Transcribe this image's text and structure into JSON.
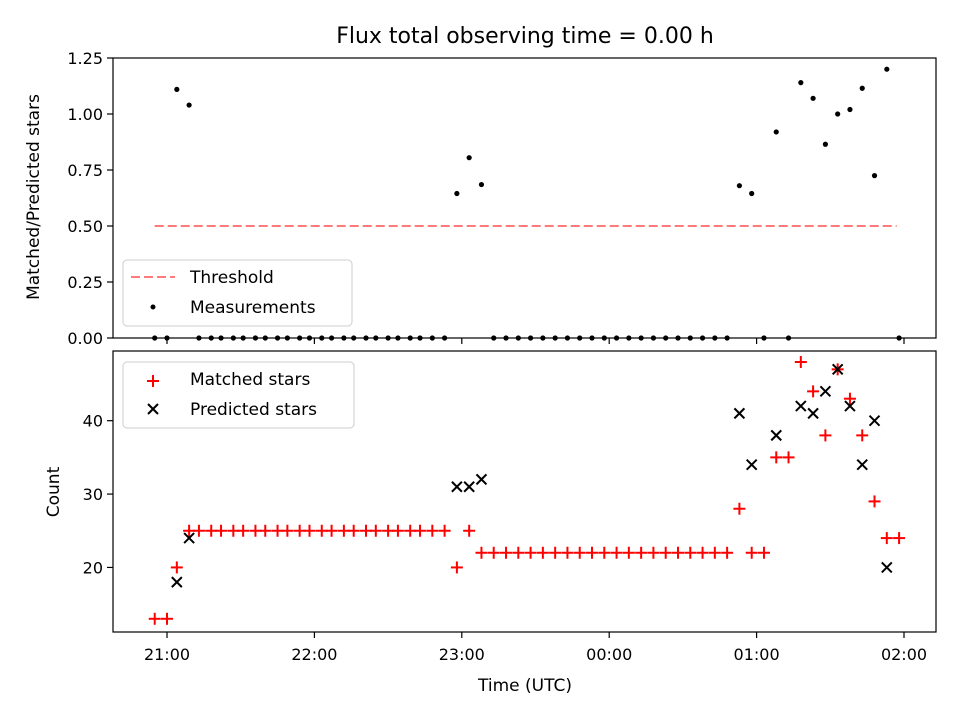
{
  "chart_data": [
    {
      "type": "scatter",
      "title": "Flux total observing time = 0.00 h",
      "xlabel": "",
      "ylabel": "Matched/Predicted stars",
      "x_tick_labels_visible": false,
      "ylim": [
        0,
        1.25
      ],
      "yticks": [
        "0.00",
        "0.25",
        "0.50",
        "0.75",
        "1.00",
        "1.25"
      ],
      "legend_position": "lower-left",
      "threshold": {
        "name": "Threshold",
        "value": 0.5,
        "x_start": "20:55",
        "x_end": "01:57",
        "color": "#ff7b7b",
        "style": "dashed"
      },
      "series": [
        {
          "name": "Measurements",
          "marker": "dot",
          "color": "#000000",
          "points": [
            [
              "20:55",
              0
            ],
            [
              "21:00",
              0
            ],
            [
              "21:04",
              1.11
            ],
            [
              "21:09",
              1.04
            ],
            [
              "21:13",
              0
            ],
            [
              "21:18",
              0
            ],
            [
              "21:22",
              0
            ],
            [
              "21:27",
              0
            ],
            [
              "21:31",
              0
            ],
            [
              "21:36",
              0
            ],
            [
              "21:40",
              0
            ],
            [
              "21:45",
              0
            ],
            [
              "21:49",
              0
            ],
            [
              "21:54",
              0
            ],
            [
              "21:58",
              0
            ],
            [
              "22:03",
              0
            ],
            [
              "22:07",
              0
            ],
            [
              "22:12",
              0
            ],
            [
              "22:16",
              0
            ],
            [
              "22:21",
              0
            ],
            [
              "22:25",
              0
            ],
            [
              "22:30",
              0
            ],
            [
              "22:34",
              0
            ],
            [
              "22:39",
              0
            ],
            [
              "22:43",
              0
            ],
            [
              "22:48",
              0
            ],
            [
              "22:53",
              0
            ],
            [
              "22:58",
              0.645
            ],
            [
              "23:03",
              0.805
            ],
            [
              "23:08",
              0.685
            ],
            [
              "23:13",
              0
            ],
            [
              "23:18",
              0
            ],
            [
              "23:23",
              0
            ],
            [
              "23:28",
              0
            ],
            [
              "23:33",
              0
            ],
            [
              "23:38",
              0
            ],
            [
              "23:43",
              0
            ],
            [
              "23:48",
              0
            ],
            [
              "23:53",
              0
            ],
            [
              "23:58",
              0
            ],
            [
              "00:03",
              0
            ],
            [
              "00:08",
              0
            ],
            [
              "00:13",
              0
            ],
            [
              "00:18",
              0
            ],
            [
              "00:23",
              0
            ],
            [
              "00:28",
              0
            ],
            [
              "00:33",
              0
            ],
            [
              "00:38",
              0
            ],
            [
              "00:43",
              0
            ],
            [
              "00:48",
              0
            ],
            [
              "00:53",
              0.68
            ],
            [
              "00:58",
              0.645
            ],
            [
              "01:03",
              0
            ],
            [
              "01:08",
              0.92
            ],
            [
              "01:13",
              0
            ],
            [
              "01:18",
              1.14
            ],
            [
              "01:23",
              1.07
            ],
            [
              "01:28",
              0.865
            ],
            [
              "01:33",
              1.0
            ],
            [
              "01:38",
              1.02
            ],
            [
              "01:43",
              1.115
            ],
            [
              "01:48",
              0.725
            ],
            [
              "01:53",
              1.2
            ],
            [
              "01:58",
              0
            ]
          ]
        }
      ]
    },
    {
      "type": "scatter",
      "title": "",
      "xlabel": "Time (UTC)",
      "ylabel": "Count",
      "ylim": [
        11.2,
        49.5
      ],
      "yticks": [
        20,
        30,
        40
      ],
      "xticks": [
        "21:00",
        "22:00",
        "23:00",
        "00:00",
        "01:00",
        "02:00"
      ],
      "legend_position": "top-left",
      "series": [
        {
          "name": "Matched stars",
          "marker": "plus",
          "color": "#ff0000",
          "points": [
            [
              "20:55",
              13
            ],
            [
              "21:00",
              13
            ],
            [
              "21:04",
              20
            ],
            [
              "21:09",
              25
            ],
            [
              "21:13",
              25
            ],
            [
              "21:18",
              25
            ],
            [
              "21:22",
              25
            ],
            [
              "21:27",
              25
            ],
            [
              "21:31",
              25
            ],
            [
              "21:36",
              25
            ],
            [
              "21:40",
              25
            ],
            [
              "21:45",
              25
            ],
            [
              "21:49",
              25
            ],
            [
              "21:54",
              25
            ],
            [
              "21:58",
              25
            ],
            [
              "22:03",
              25
            ],
            [
              "22:07",
              25
            ],
            [
              "22:12",
              25
            ],
            [
              "22:16",
              25
            ],
            [
              "22:21",
              25
            ],
            [
              "22:25",
              25
            ],
            [
              "22:30",
              25
            ],
            [
              "22:34",
              25
            ],
            [
              "22:39",
              25
            ],
            [
              "22:43",
              25
            ],
            [
              "22:48",
              25
            ],
            [
              "22:53",
              25
            ],
            [
              "22:58",
              20
            ],
            [
              "23:03",
              25
            ],
            [
              "23:08",
              22
            ],
            [
              "23:13",
              22
            ],
            [
              "23:18",
              22
            ],
            [
              "23:23",
              22
            ],
            [
              "23:28",
              22
            ],
            [
              "23:33",
              22
            ],
            [
              "23:38",
              22
            ],
            [
              "23:43",
              22
            ],
            [
              "23:48",
              22
            ],
            [
              "23:53",
              22
            ],
            [
              "23:58",
              22
            ],
            [
              "00:03",
              22
            ],
            [
              "00:08",
              22
            ],
            [
              "00:13",
              22
            ],
            [
              "00:18",
              22
            ],
            [
              "00:23",
              22
            ],
            [
              "00:28",
              22
            ],
            [
              "00:33",
              22
            ],
            [
              "00:38",
              22
            ],
            [
              "00:43",
              22
            ],
            [
              "00:48",
              22
            ],
            [
              "00:53",
              28
            ],
            [
              "00:58",
              22
            ],
            [
              "01:03",
              22
            ],
            [
              "01:08",
              35
            ],
            [
              "01:13",
              35
            ],
            [
              "01:18",
              48
            ],
            [
              "01:23",
              44
            ],
            [
              "01:28",
              38
            ],
            [
              "01:33",
              47
            ],
            [
              "01:38",
              43
            ],
            [
              "01:43",
              38
            ],
            [
              "01:48",
              29
            ],
            [
              "01:53",
              24
            ],
            [
              "01:58",
              24
            ]
          ]
        },
        {
          "name": "Predicted stars",
          "marker": "x",
          "color": "#000000",
          "points": [
            [
              "21:04",
              18
            ],
            [
              "21:09",
              24
            ],
            [
              "22:58",
              31
            ],
            [
              "23:03",
              31
            ],
            [
              "23:08",
              32
            ],
            [
              "00:53",
              41
            ],
            [
              "00:58",
              34
            ],
            [
              "01:08",
              38
            ],
            [
              "01:18",
              42
            ],
            [
              "01:23",
              41
            ],
            [
              "01:28",
              44
            ],
            [
              "01:33",
              47
            ],
            [
              "01:38",
              42
            ],
            [
              "01:43",
              34
            ],
            [
              "01:48",
              40
            ],
            [
              "01:53",
              20
            ]
          ]
        }
      ]
    }
  ]
}
